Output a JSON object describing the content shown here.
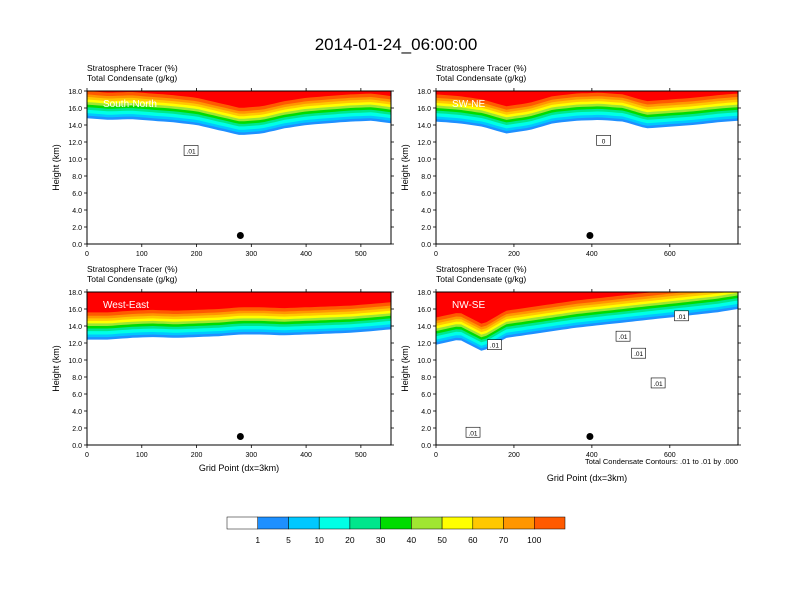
{
  "title": "2014-01-24_06:00:00",
  "field_labels": [
    "Stratosphere Tracer   (%)",
    "Total Condensate   (g/kg)"
  ],
  "contour_note": "Total Condensate Contours: .01 to .01 by .000",
  "colors": {
    "fill_scale": [
      "#ffffff",
      "#1e90ff",
      "#00c8ff",
      "#00ffe6",
      "#00e68c",
      "#00dc00",
      "#a0e632",
      "#ffff00",
      "#ffc800",
      "#ff9600",
      "#ff5a00",
      "#ff0000"
    ],
    "contour_line": "#000000",
    "marker": "#000000"
  },
  "chart_data": [
    {
      "type": "heatmap",
      "panel_label": "South-North",
      "ylabel": "Height (km)",
      "xlabel": "",
      "x_ticks": [
        0,
        100,
        200,
        300,
        400,
        500
      ],
      "xlim": [
        0,
        555
      ],
      "y_ticks": [
        "0.0",
        "2.0",
        "4.0",
        "6.0",
        "8.0",
        "10.0",
        "12.0",
        "14.0",
        "16.0",
        "18.0"
      ],
      "ylim": [
        0,
        18
      ],
      "tracer_layer": {
        "x": [
          0,
          40,
          80,
          120,
          160,
          200,
          240,
          280,
          320,
          360,
          400,
          440,
          480,
          520,
          555
        ],
        "base_km": [
          14.8,
          14.6,
          14.7,
          14.5,
          14.3,
          14.0,
          13.4,
          12.8,
          13.0,
          13.6,
          14.0,
          14.2,
          14.4,
          14.5,
          14.2
        ]
      },
      "contour_labels": [
        {
          "text": ".01",
          "x": 190,
          "y": 11.0
        }
      ],
      "marker": {
        "x": 280,
        "y": 1.0
      }
    },
    {
      "type": "heatmap",
      "panel_label": "SW-NE",
      "ylabel": "Height (km)",
      "xlabel": "",
      "x_ticks": [
        0,
        200,
        400,
        600
      ],
      "xlim": [
        0,
        775
      ],
      "y_ticks": [
        "0.0",
        "2.0",
        "4.0",
        "6.0",
        "8.0",
        "10.0",
        "12.0",
        "14.0",
        "16.0",
        "18.0"
      ],
      "ylim": [
        0,
        18
      ],
      "tracer_layer": {
        "x": [
          0,
          60,
          120,
          180,
          240,
          300,
          360,
          420,
          480,
          540,
          600,
          660,
          720,
          775
        ],
        "base_km": [
          14.4,
          14.2,
          13.8,
          13.0,
          13.4,
          14.2,
          14.5,
          14.6,
          14.4,
          13.6,
          13.8,
          14.0,
          14.3,
          14.5
        ]
      },
      "contour_labels": [
        {
          "text": "0",
          "x": 430,
          "y": 12.2
        }
      ],
      "marker": {
        "x": 395,
        "y": 1.0
      }
    },
    {
      "type": "heatmap",
      "panel_label": "West-East",
      "ylabel": "Height (km)",
      "xlabel": "Grid Point (dx=3km)",
      "x_ticks": [
        0,
        100,
        200,
        300,
        400,
        500
      ],
      "xlim": [
        0,
        555
      ],
      "y_ticks": [
        "0.0",
        "2.0",
        "4.0",
        "6.0",
        "8.0",
        "10.0",
        "12.0",
        "14.0",
        "16.0",
        "18.0"
      ],
      "ylim": [
        0,
        18
      ],
      "tracer_layer": {
        "x": [
          0,
          40,
          80,
          120,
          160,
          200,
          240,
          280,
          320,
          360,
          400,
          440,
          480,
          520,
          555
        ],
        "base_km": [
          12.4,
          12.4,
          12.6,
          12.7,
          12.6,
          12.7,
          12.8,
          13.0,
          13.0,
          12.9,
          13.0,
          13.1,
          13.2,
          13.4,
          13.6
        ]
      },
      "contour_labels": [],
      "marker": {
        "x": 280,
        "y": 1.0
      }
    },
    {
      "type": "heatmap",
      "panel_label": "NW-SE",
      "ylabel": "Height (km)",
      "xlabel": "Grid Point (dx=3km)",
      "x_ticks": [
        0,
        200,
        400,
        600
      ],
      "xlim": [
        0,
        775
      ],
      "y_ticks": [
        "0.0",
        "2.0",
        "4.0",
        "6.0",
        "8.0",
        "10.0",
        "12.0",
        "14.0",
        "16.0",
        "18.0"
      ],
      "ylim": [
        0,
        18
      ],
      "tracer_layer": {
        "x": [
          0,
          60,
          120,
          180,
          240,
          300,
          360,
          420,
          480,
          540,
          600,
          660,
          720,
          775
        ],
        "base_km": [
          11.8,
          12.4,
          11.0,
          12.6,
          13.0,
          13.4,
          13.8,
          14.1,
          14.4,
          14.7,
          15.0,
          15.3,
          15.6,
          16.0
        ]
      },
      "contour_labels": [
        {
          "text": ".01",
          "x": 150,
          "y": 11.8
        },
        {
          "text": ".01",
          "x": 95,
          "y": 1.5
        },
        {
          "text": ".01",
          "x": 480,
          "y": 12.8
        },
        {
          "text": ".01",
          "x": 520,
          "y": 10.8
        },
        {
          "text": ".01",
          "x": 570,
          "y": 7.3
        },
        {
          "text": ".01",
          "x": 630,
          "y": 15.2
        }
      ],
      "marker": {
        "x": 395,
        "y": 1.0
      }
    }
  ],
  "colorbar": {
    "labels": [
      "1",
      "5",
      "10",
      "20",
      "30",
      "40",
      "50",
      "60",
      "70",
      "100"
    ]
  }
}
